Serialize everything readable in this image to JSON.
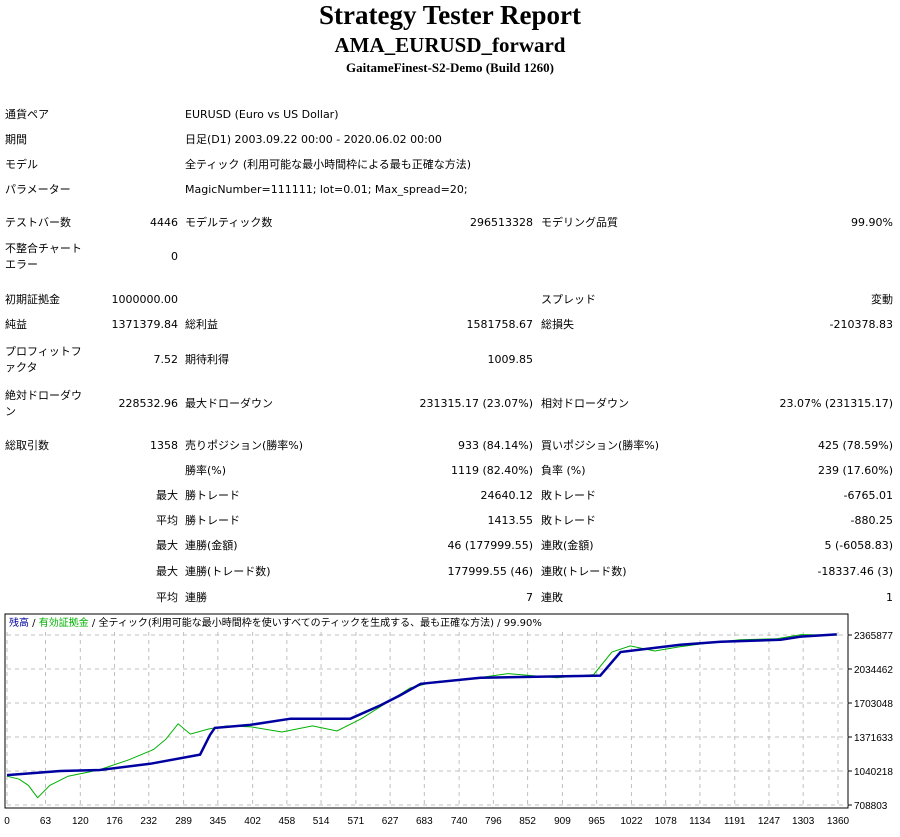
{
  "header": {
    "title": "Strategy Tester Report",
    "subtitle": "AMA_EURUSD_forward",
    "server": "GaitameFinest-S2-Demo (Build 1260)"
  },
  "info": [
    {
      "label": "通貨ペア",
      "value": "EURUSD (Euro vs US Dollar)"
    },
    {
      "label": "期間",
      "value": "日足(D1) 2003.09.22 00:00 - 2020.06.02 00:00"
    },
    {
      "label": "モデル",
      "value": "全ティック (利用可能な最小時間枠による最も正確な方法)"
    },
    {
      "label": "パラメーター",
      "value": "MagicNumber=111111; lot=0.01; Max_spread=20;"
    }
  ],
  "stats": [
    [
      "テストバー数",
      "4446",
      "モデルティック数",
      "296513328",
      "モデリング品質",
      "99.90%"
    ],
    [
      "不整合チャートエラー",
      "0",
      "",
      "",
      "",
      ""
    ],
    [
      "初期証拠金",
      "1000000.00",
      "",
      "",
      "スプレッド",
      "変動"
    ],
    [
      "純益",
      "1371379.84",
      "総利益",
      "1581758.67",
      "総損失",
      "-210378.83"
    ],
    [
      "プロフィットファクタ",
      "7.52",
      "期待利得",
      "1009.85",
      "",
      ""
    ],
    [
      "絶対ドローダウン",
      "228532.96",
      "最大ドローダウン",
      "231315.17 (23.07%)",
      "相対ドローダウン",
      "23.07% (231315.17)"
    ],
    [
      "総取引数",
      "1358",
      "売りポジション(勝率%)",
      "933 (84.14%)",
      "買いポジション(勝率%)",
      "425 (78.59%)"
    ],
    [
      "",
      "",
      "勝率(%)",
      "1119 (82.40%)",
      "負率 (%)",
      "239 (17.60%)"
    ],
    [
      "",
      "最大",
      "勝トレード",
      "24640.12",
      "敗トレード",
      "-6765.01"
    ],
    [
      "",
      "平均",
      "勝トレード",
      "1413.55",
      "敗トレード",
      "-880.25"
    ],
    [
      "",
      "最大",
      "連勝(金額)",
      "46 (177999.55)",
      "連敗(金額)",
      "5 (-6058.83)"
    ],
    [
      "",
      "最大",
      "連勝(トレード数)",
      "177999.55 (46)",
      "連敗(トレード数)",
      "-18337.46 (3)"
    ],
    [
      "",
      "平均",
      "連勝",
      "7",
      "連敗",
      "1"
    ]
  ],
  "chart_data": {
    "type": "line",
    "legend": {
      "balance": "残高",
      "sep1": " / ",
      "equity": "有効証拠金",
      "sep2": " / ",
      "model": "全ティック(利用可能な最小時間枠を使いすべてのティックを生成する、最も正確な方法)",
      "sep3": " / ",
      "quality": "99.90%"
    },
    "colors": {
      "balance": "#0000a0",
      "equity": "#00b000",
      "grid": "#c0c0c0"
    },
    "xlim": [
      0,
      1360
    ],
    "ylim": [
      708803,
      2365877
    ],
    "x_ticks": [
      0,
      63,
      120,
      176,
      232,
      289,
      345,
      402,
      458,
      514,
      571,
      627,
      683,
      740,
      796,
      852,
      909,
      965,
      1022,
      1078,
      1134,
      1191,
      1247,
      1303,
      1360
    ],
    "y_ticks": [
      "708803",
      "1040218",
      "1371633",
      "1703048",
      "2034462",
      "2365877"
    ],
    "series": [
      {
        "name": "残高",
        "points": [
          [
            0,
            1000000
          ],
          [
            87,
            1040000
          ],
          [
            152,
            1050000
          ],
          [
            234,
            1110000
          ],
          [
            316,
            1200000
          ],
          [
            332,
            1390000
          ],
          [
            340,
            1460000
          ],
          [
            398,
            1490000
          ],
          [
            464,
            1550000
          ],
          [
            562,
            1550000
          ],
          [
            611,
            1680000
          ],
          [
            644,
            1780000
          ],
          [
            677,
            1890000
          ],
          [
            775,
            1950000
          ],
          [
            971,
            1970000
          ],
          [
            1004,
            2200000
          ],
          [
            1102,
            2270000
          ],
          [
            1168,
            2300000
          ],
          [
            1266,
            2320000
          ],
          [
            1299,
            2350000
          ],
          [
            1358,
            2371380
          ]
        ]
      },
      {
        "name": "有効証拠金",
        "points": [
          [
            0,
            990000
          ],
          [
            20,
            960000
          ],
          [
            35,
            900000
          ],
          [
            50,
            780000
          ],
          [
            70,
            900000
          ],
          [
            100,
            990000
          ],
          [
            150,
            1050000
          ],
          [
            200,
            1150000
          ],
          [
            240,
            1250000
          ],
          [
            260,
            1350000
          ],
          [
            280,
            1500000
          ],
          [
            300,
            1400000
          ],
          [
            330,
            1450000
          ],
          [
            360,
            1480000
          ],
          [
            400,
            1470000
          ],
          [
            450,
            1420000
          ],
          [
            500,
            1480000
          ],
          [
            540,
            1430000
          ],
          [
            580,
            1550000
          ],
          [
            620,
            1700000
          ],
          [
            660,
            1850000
          ],
          [
            700,
            1910000
          ],
          [
            760,
            1940000
          ],
          [
            820,
            1990000
          ],
          [
            900,
            1950000
          ],
          [
            960,
            1980000
          ],
          [
            990,
            2200000
          ],
          [
            1020,
            2260000
          ],
          [
            1060,
            2210000
          ],
          [
            1100,
            2250000
          ],
          [
            1150,
            2290000
          ],
          [
            1200,
            2320000
          ],
          [
            1260,
            2330000
          ],
          [
            1300,
            2370000
          ],
          [
            1358,
            2365000
          ]
        ]
      }
    ]
  }
}
